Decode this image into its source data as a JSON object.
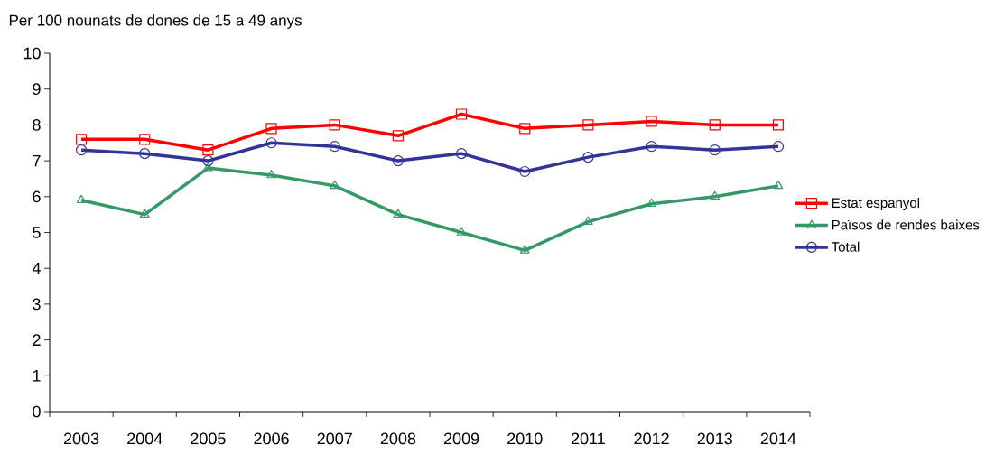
{
  "chart_data": {
    "type": "line",
    "title": "Per 100 nounats de dones de 15 a 49 anys",
    "categories": [
      "2003",
      "2004",
      "2005",
      "2006",
      "2007",
      "2008",
      "2009",
      "2010",
      "2011",
      "2012",
      "2013",
      "2014"
    ],
    "series": [
      {
        "name": "Estat espanyol",
        "color": "#ff0000",
        "marker": "square",
        "values": [
          7.6,
          7.6,
          7.3,
          7.9,
          8.0,
          7.7,
          8.3,
          7.9,
          8.0,
          8.1,
          8.0,
          8.0
        ]
      },
      {
        "name": "Països de rendes baixes",
        "color": "#339966",
        "marker": "triangle",
        "values": [
          5.9,
          5.5,
          6.8,
          6.6,
          6.3,
          5.5,
          5.0,
          4.5,
          5.3,
          5.8,
          6.0,
          6.3
        ]
      },
      {
        "name": "Total",
        "color": "#333399",
        "marker": "circle",
        "values": [
          7.3,
          7.2,
          7.0,
          7.5,
          7.4,
          7.0,
          7.2,
          6.7,
          7.1,
          7.4,
          7.3,
          7.4
        ]
      }
    ],
    "ylim": [
      0,
      10
    ],
    "yticks": [
      0,
      1,
      2,
      3,
      4,
      5,
      6,
      7,
      8,
      9,
      10
    ],
    "grid": false,
    "legend": "right",
    "line_style": "solid"
  }
}
